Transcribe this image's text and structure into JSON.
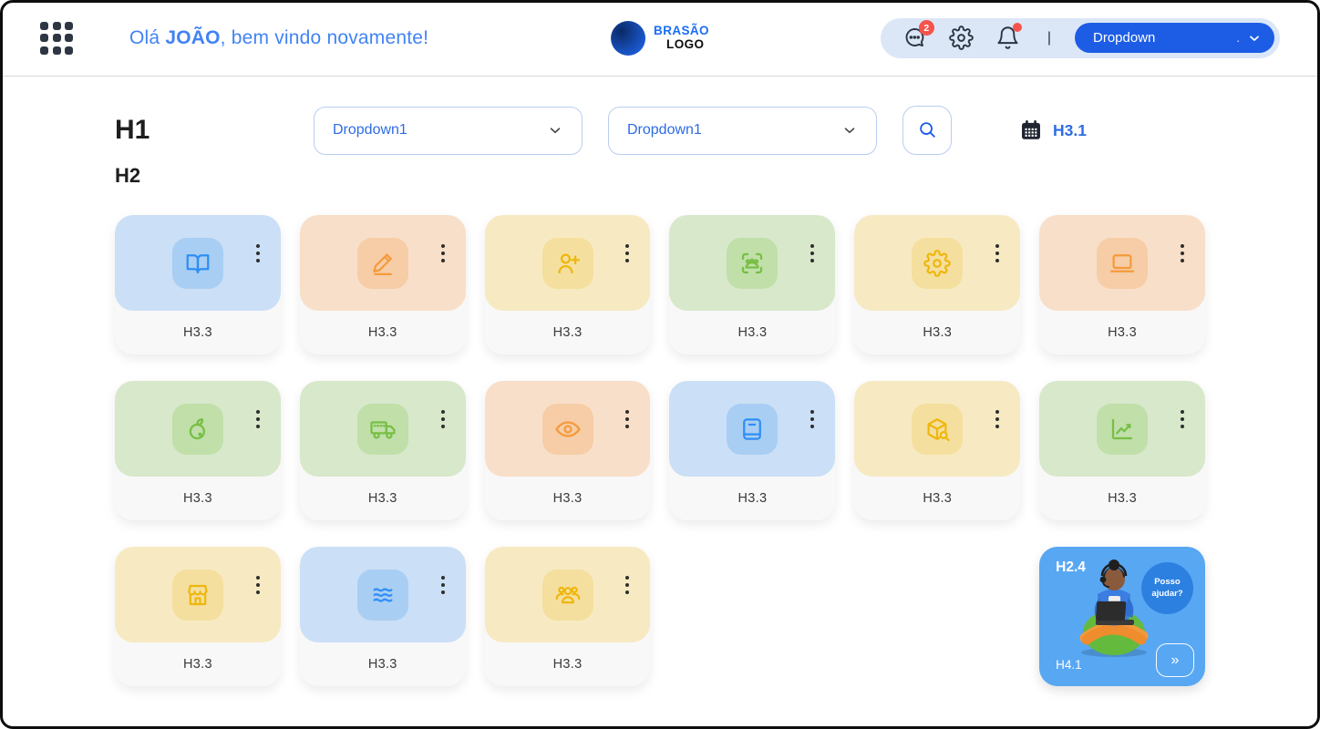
{
  "header": {
    "greeting_prefix": "Olá ",
    "greeting_name": "JOÃO",
    "greeting_suffix": ", bem vindo novamente!",
    "logo": {
      "line1": "BRASÃO",
      "line2": "LOGO"
    },
    "chat_badge": "2",
    "separator": "|",
    "dropdown_label": "Dropdown",
    "dropdown_dot": "."
  },
  "toolbar": {
    "h1": "H1",
    "h2": "H2",
    "dropdown1_label": "Dropdown1",
    "dropdown2_label": "Dropdown1",
    "calendar_link": "H3.1"
  },
  "colors": {
    "accent_blue": "#1d5de5",
    "link_blue": "#2e6ce4",
    "badge_red": "#f4544c",
    "help_card_bg": "#58a7f3",
    "help_bubble_bg": "#2c80e0",
    "variants": {
      "blue": {
        "bg": "#cbdff6",
        "tile": "#a9cef3",
        "icon": "#2e8ef7"
      },
      "peach": {
        "bg": "#f8dfc9",
        "tile": "#f6cda6",
        "icon": "#f59a3c"
      },
      "yellow": {
        "bg": "#f7eac3",
        "tile": "#f5df9e",
        "icon": "#eeb70d"
      },
      "green": {
        "bg": "#d8e8cb",
        "tile": "#c0dfa9",
        "icon": "#77bf45"
      }
    }
  },
  "cards": [
    {
      "icon": "book-open",
      "variant": "blue",
      "label": "H3.3"
    },
    {
      "icon": "edit",
      "variant": "peach",
      "label": "H3.3"
    },
    {
      "icon": "user-plus",
      "variant": "yellow",
      "label": "H3.3"
    },
    {
      "icon": "face-scan",
      "variant": "green",
      "label": "H3.3"
    },
    {
      "icon": "gear",
      "variant": "yellow",
      "label": "H3.3"
    },
    {
      "icon": "laptop",
      "variant": "peach",
      "label": "H3.3"
    },
    {
      "icon": "fruit",
      "variant": "green",
      "label": "H3.3"
    },
    {
      "icon": "truck",
      "variant": "green",
      "label": "H3.3"
    },
    {
      "icon": "eye",
      "variant": "peach",
      "label": "H3.3"
    },
    {
      "icon": "notebook",
      "variant": "blue",
      "label": "H3.3"
    },
    {
      "icon": "package-search",
      "variant": "yellow",
      "label": "H3.3"
    },
    {
      "icon": "line-chart",
      "variant": "green",
      "label": "H3.3"
    },
    {
      "icon": "store",
      "variant": "yellow",
      "label": "H3.3"
    },
    {
      "icon": "layers",
      "variant": "blue",
      "label": "H3.3"
    },
    {
      "icon": "users-group",
      "variant": "yellow",
      "label": "H3.3"
    }
  ],
  "help_card": {
    "title": "H2.4",
    "bubble_line1": "Posso",
    "bubble_line2": "ajudar?",
    "footer": "H4.1",
    "arrow": "»"
  }
}
